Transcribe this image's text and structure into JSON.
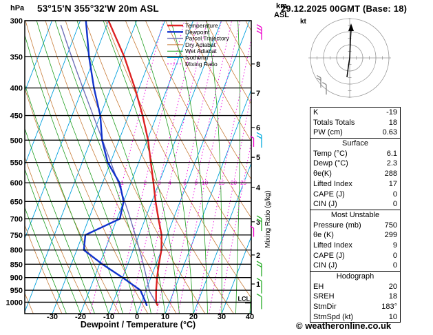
{
  "header": {
    "title": "53°15'N 355°32'W 20m ASL",
    "date": "29.12.2025 00GMT (Base: 18)"
  },
  "labels": {
    "pressure_unit": "hPa",
    "altitude_unit": "km\nASL",
    "x_axis": "Dewpoint / Temperature (°C)",
    "mixing_ratio_axis": "Mixing Ratio (g/kg)",
    "hodograph_unit": "kt",
    "lcl": "LCL"
  },
  "legend": [
    {
      "label": "Temperature",
      "color": "#dd2222"
    },
    {
      "label": "Dewpoint",
      "color": "#1133cc"
    },
    {
      "label": "Parcel Trajectory",
      "color": "#7070b8"
    },
    {
      "label": "Dry Adiabat",
      "color": "#c87d3a"
    },
    {
      "label": "Wet Adiabat",
      "color": "#1f9e1f"
    },
    {
      "label": "Isotherm",
      "color": "#00a0dd"
    },
    {
      "label": "Mixing Ratio",
      "color": "#ee00dd"
    }
  ],
  "colors": {
    "temperature": "#dd2222",
    "dewpoint": "#1133cc",
    "parcel": "#7070b8",
    "dry_adiabat": "#c87d3a",
    "wet_adiabat": "#1f9e1f",
    "isotherm": "#00a0dd",
    "mixing_ratio": "#ee00dd",
    "barb_low": "#22aa22",
    "barb_mid": "#00aadd",
    "barb_high": "#ee00cc",
    "grid": "#000000"
  },
  "table": {
    "sections": [
      {
        "title": null,
        "rows": [
          [
            "K",
            "-19"
          ],
          [
            "Totals Totals",
            "18"
          ],
          [
            "PW (cm)",
            "0.63"
          ]
        ]
      },
      {
        "title": "Surface",
        "rows": [
          [
            "Temp (°C)",
            "6.1"
          ],
          [
            "Dewp (°C)",
            "2.3"
          ],
          [
            "θe(K)",
            "288"
          ],
          [
            "Lifted Index",
            "17"
          ],
          [
            "CAPE (J)",
            "0"
          ],
          [
            "CIN (J)",
            "0"
          ]
        ]
      },
      {
        "title": "Most Unstable",
        "rows": [
          [
            "Pressure (mb)",
            "750"
          ],
          [
            "θe (K)",
            "299"
          ],
          [
            "Lifted Index",
            "9"
          ],
          [
            "CAPE (J)",
            "0"
          ],
          [
            "CIN (J)",
            "0"
          ]
        ]
      },
      {
        "title": "Hodograph",
        "rows": [
          [
            "EH",
            "20"
          ],
          [
            "SREH",
            "18"
          ],
          [
            "StmDir",
            "183°"
          ],
          [
            "StmSpd (kt)",
            "10"
          ]
        ]
      }
    ]
  },
  "footer": {
    "copyright": "© weatheronline.co.uk"
  },
  "chart_data": {
    "type": "skewt-sounding",
    "pressure_range_hpa": [
      300,
      1050
    ],
    "pressure_ticks_hpa": [
      300,
      350,
      400,
      450,
      500,
      550,
      600,
      650,
      700,
      750,
      800,
      850,
      900,
      950,
      1000
    ],
    "temp_ticks_c": [
      -30,
      -20,
      -10,
      0,
      10,
      20,
      30,
      40
    ],
    "km_ticks": [
      1,
      2,
      3,
      4,
      5,
      6,
      7,
      8
    ],
    "mixing_ratio_gkg": [
      1,
      2,
      3,
      4,
      6,
      8,
      10,
      15,
      20,
      25
    ],
    "lcl_pressure_hpa": 986,
    "surface": {
      "pressure_hpa": 1013,
      "temp_c": 6.1,
      "dewp_c": 2.3
    },
    "temperature_profile": [
      [
        1013,
        6.1
      ],
      [
        1000,
        5.2
      ],
      [
        950,
        3.6
      ],
      [
        900,
        2.2
      ],
      [
        850,
        1.0
      ],
      [
        800,
        0.0
      ],
      [
        750,
        -2.0
      ],
      [
        700,
        -5.3
      ],
      [
        650,
        -8.7
      ],
      [
        600,
        -12.0
      ],
      [
        550,
        -15.7
      ],
      [
        500,
        -19.7
      ],
      [
        450,
        -25.0
      ],
      [
        400,
        -31.5
      ],
      [
        350,
        -39.5
      ],
      [
        300,
        -50.0
      ]
    ],
    "dewpoint_profile": [
      [
        1013,
        2.3
      ],
      [
        1000,
        1.5
      ],
      [
        950,
        -2.0
      ],
      [
        900,
        -10.0
      ],
      [
        850,
        -19.0
      ],
      [
        800,
        -27.5
      ],
      [
        750,
        -29.0
      ],
      [
        700,
        -19.0
      ],
      [
        650,
        -20.0
      ],
      [
        600,
        -24.0
      ],
      [
        550,
        -31.0
      ],
      [
        500,
        -36.0
      ],
      [
        450,
        -40.0
      ],
      [
        400,
        -46.0
      ],
      [
        350,
        -52.0
      ],
      [
        300,
        -58.0
      ]
    ],
    "wind_barbs": [
      {
        "pressure_hpa": 317,
        "level": "high",
        "ticks": 3
      },
      {
        "pressure_hpa": 503,
        "level": "mid",
        "ticks": 2
      },
      {
        "pressure_hpa": 718,
        "level": "low",
        "ticks": 2
      },
      {
        "pressure_hpa": 872,
        "level": "low",
        "ticks": 2
      },
      {
        "pressure_hpa": 938,
        "level": "low",
        "ticks": 1
      },
      {
        "pressure_hpa": 1003,
        "level": "low",
        "ticks": 1
      }
    ],
    "level_marks_hpa": [
      505,
      742
    ],
    "hodograph": {
      "unit_label": "kt",
      "storm_dir_deg": 183,
      "storm_speed_kt": 10
    }
  }
}
